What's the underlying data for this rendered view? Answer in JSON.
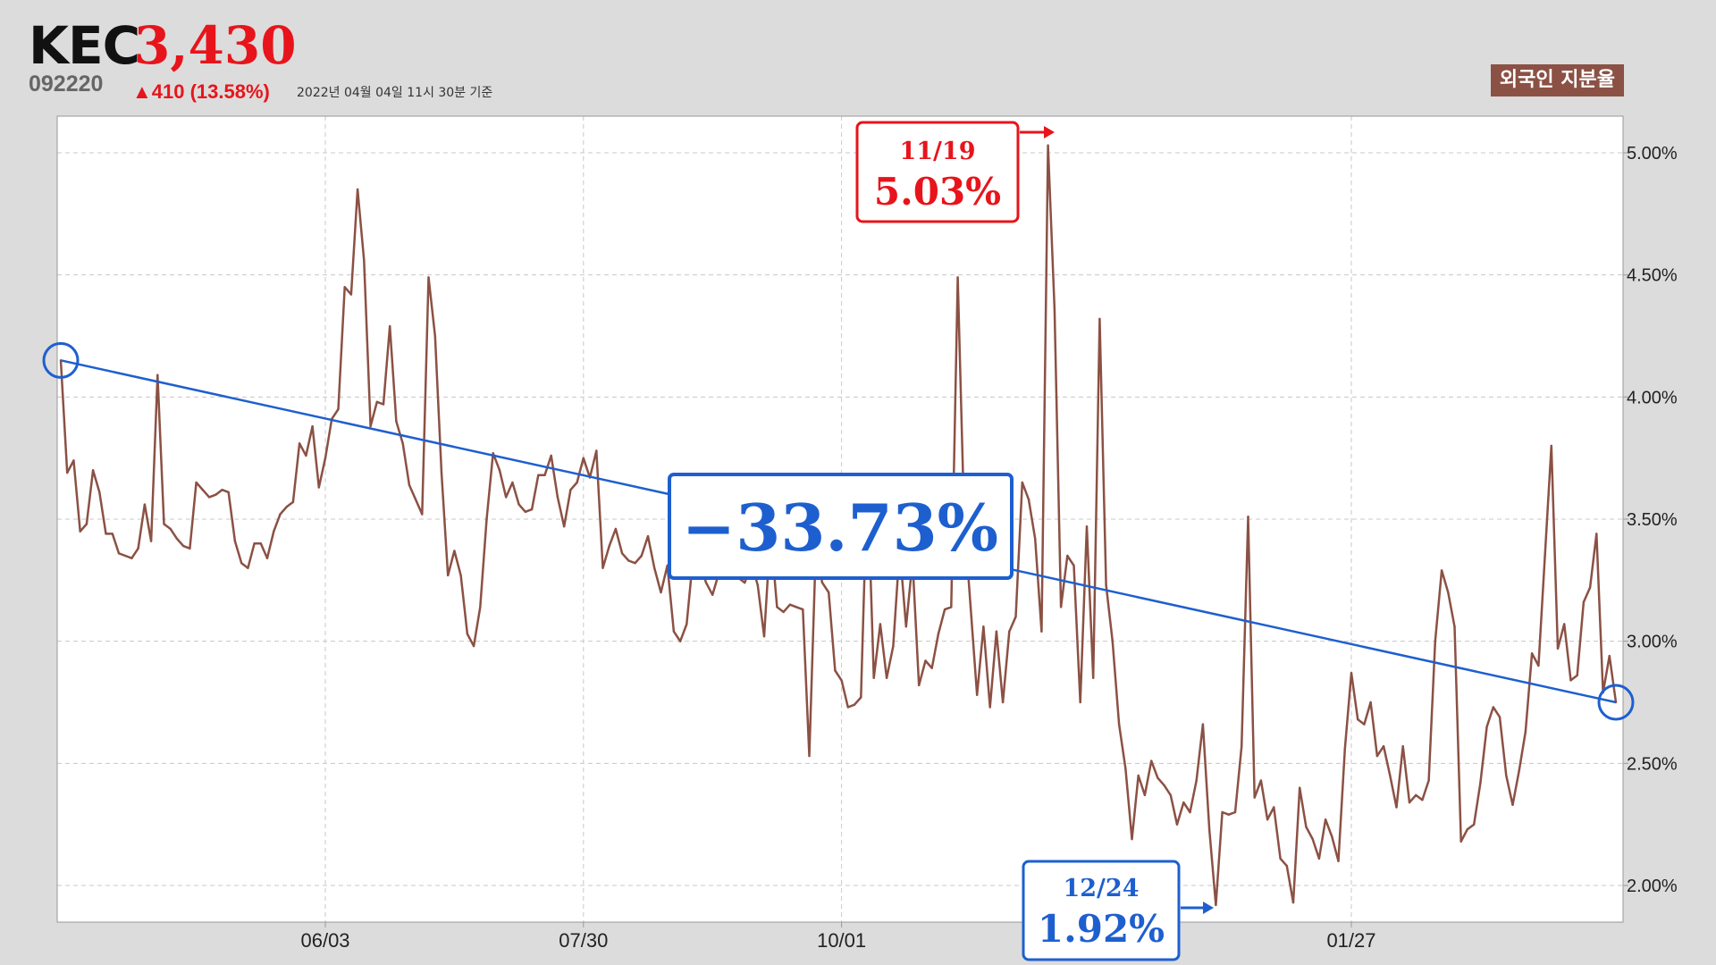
{
  "header": {
    "ticker": "KEC",
    "price": "3,430",
    "code": "092220",
    "change": "▲410 (13.58%)",
    "as_of": "2022년 04월 04일 11시 30분 기준",
    "badge": "외국인 지분율"
  },
  "annotations": {
    "max": {
      "date": "11/19",
      "value": "5.03%"
    },
    "min": {
      "date": "12/24",
      "value": "1.92%"
    },
    "change": "−33.73%"
  },
  "colors": {
    "series": "#8b5144",
    "trend": "#1e5fcf",
    "highlight_red": "#e8141b",
    "highlight_blue": "#1e5fcf",
    "plot_bg": "#ffffff",
    "page_bg": "#dcdcdc"
  },
  "chart_data": {
    "type": "line",
    "title": "외국인 지분율",
    "ylim": [
      1.85,
      5.15
    ],
    "y_ticks": [
      2.0,
      2.5,
      3.0,
      3.5,
      4.0,
      4.5,
      5.0
    ],
    "y_tick_labels": [
      "2.00%",
      "2.50%",
      "3.00%",
      "3.50%",
      "4.00%",
      "4.50%",
      "5.00%"
    ],
    "x_tick_labels": [
      "06/03",
      "07/30",
      "10/01",
      "01/27"
    ],
    "x_tick_index": [
      41,
      81,
      121,
      200
    ],
    "grid": true,
    "y_axis_side": "right",
    "series": [
      {
        "values": [
          4.15,
          3.69,
          3.74,
          3.45,
          3.48,
          3.7,
          3.61,
          3.44,
          3.44,
          3.36,
          3.35,
          3.34,
          3.38,
          3.56,
          3.41,
          4.09,
          3.48,
          3.46,
          3.42,
          3.39,
          3.38,
          3.65,
          3.62,
          3.59,
          3.6,
          3.62,
          3.61,
          3.41,
          3.32,
          3.3,
          3.4,
          3.4,
          3.34,
          3.45,
          3.52,
          3.55,
          3.57,
          3.81,
          3.76,
          3.88,
          3.63,
          3.75,
          3.91,
          3.95,
          4.45,
          4.42,
          4.85,
          4.56,
          3.88,
          3.98,
          3.97,
          4.29,
          3.9,
          3.81,
          3.64,
          3.58,
          3.52,
          4.49,
          4.25,
          3.69,
          3.27,
          3.37,
          3.27,
          3.03,
          2.98,
          3.14,
          3.5,
          3.77,
          3.7,
          3.59,
          3.65,
          3.56,
          3.53,
          3.54,
          3.68,
          3.68,
          3.76,
          3.59,
          3.47,
          3.62,
          3.65,
          3.75,
          3.67,
          3.78,
          3.3,
          3.39,
          3.46,
          3.36,
          3.33,
          3.32,
          3.35,
          3.43,
          3.3,
          3.2,
          3.31,
          3.04,
          3.0,
          3.07,
          3.35,
          3.32,
          3.24,
          3.19,
          3.28,
          3.33,
          3.36,
          3.26,
          3.24,
          3.32,
          3.23,
          3.02,
          3.45,
          3.14,
          3.12,
          3.15,
          3.14,
          3.13,
          2.53,
          3.37,
          3.24,
          3.2,
          2.88,
          2.84,
          2.73,
          2.74,
          2.77,
          3.68,
          2.85,
          3.07,
          2.85,
          2.98,
          3.38,
          3.06,
          3.33,
          2.82,
          2.92,
          2.89,
          3.03,
          3.13,
          3.14,
          4.49,
          3.5,
          3.14,
          2.78,
          3.06,
          2.73,
          3.04,
          2.75,
          3.04,
          3.1,
          3.65,
          3.58,
          3.42,
          3.04,
          5.03,
          4.36,
          3.14,
          3.35,
          3.31,
          2.75,
          3.47,
          2.85,
          4.32,
          3.23,
          3.0,
          2.66,
          2.48,
          2.19,
          2.45,
          2.37,
          2.51,
          2.44,
          2.41,
          2.37,
          2.25,
          2.34,
          2.3,
          2.43,
          2.66,
          2.23,
          1.92,
          2.3,
          2.29,
          2.3,
          2.57,
          3.51,
          2.36,
          2.43,
          2.27,
          2.32,
          2.11,
          2.08,
          1.93,
          2.4,
          2.24,
          2.19,
          2.11,
          2.27,
          2.2,
          2.1,
          2.56,
          2.87,
          2.68,
          2.66,
          2.75,
          2.53,
          2.57,
          2.45,
          2.32,
          2.57,
          2.34,
          2.37,
          2.35,
          2.43,
          3.0,
          3.29,
          3.2,
          3.06,
          2.18,
          2.23,
          2.25,
          2.42,
          2.65,
          2.73,
          2.69,
          2.45,
          2.33,
          2.47,
          2.63,
          2.95,
          2.9,
          3.35,
          3.8,
          2.97,
          3.07,
          2.84,
          2.86,
          3.16,
          3.22,
          3.44,
          2.79,
          2.94,
          2.75
        ]
      }
    ],
    "trend": {
      "start": 4.15,
      "end": 2.75
    }
  }
}
